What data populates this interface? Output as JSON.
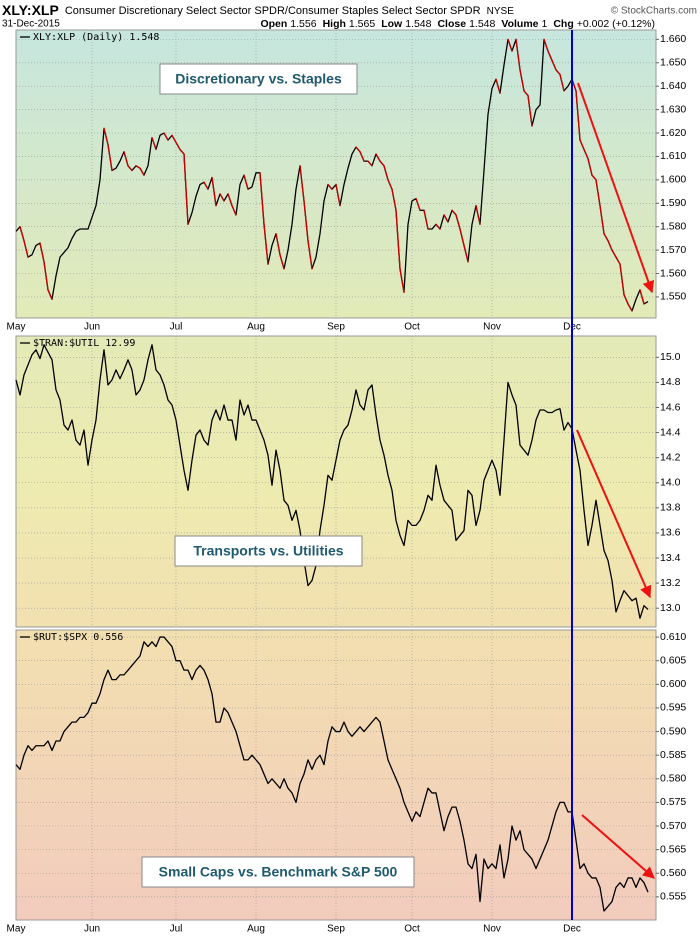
{
  "header": {
    "symbol": "XLY:XLP",
    "description": "Consumer Discretionary Select Sector SPDR/Consumer Staples Select Sector SPDR",
    "exchange": "NYSE",
    "date": "31-Dec-2015",
    "copyright": "© StockCharts.com",
    "stats": [
      {
        "label": "Open",
        "value": "1.556"
      },
      {
        "label": "High",
        "value": "1.565"
      },
      {
        "label": "Low",
        "value": "1.548"
      },
      {
        "label": "Close",
        "value": "1.548"
      },
      {
        "label": "Volume",
        "value": "1"
      },
      {
        "label": "Chg",
        "value": "+0.002 (+0.12%)"
      }
    ]
  },
  "chart_data": [
    {
      "type": "line",
      "annotation": "Discretionary vs. Staples",
      "grid": true,
      "xlim": [
        0,
        160
      ],
      "xticks": [
        {
          "value": 0,
          "label": "May"
        },
        {
          "value": 19,
          "label": "Jun"
        },
        {
          "value": 40,
          "label": "Jul"
        },
        {
          "value": 60,
          "label": "Aug"
        },
        {
          "value": 80,
          "label": "Sep"
        },
        {
          "value": 99,
          "label": "Oct"
        },
        {
          "value": 119,
          "label": "Nov"
        },
        {
          "value": 139,
          "label": "Dec"
        }
      ],
      "vline": {
        "x": 139,
        "color": "#0000cc"
      },
      "ylim": [
        1.541,
        1.664
      ],
      "yticks": [
        {
          "value": 1.55,
          "label": "1.550"
        },
        {
          "value": 1.56,
          "label": "1.560"
        },
        {
          "value": 1.57,
          "label": "1.570"
        },
        {
          "value": 1.58,
          "label": "1.580"
        },
        {
          "value": 1.59,
          "label": "1.590"
        },
        {
          "value": 1.6,
          "label": "1.600"
        },
        {
          "value": 1.61,
          "label": "1.610"
        },
        {
          "value": 1.62,
          "label": "1.620"
        },
        {
          "value": 1.63,
          "label": "1.630"
        },
        {
          "value": 1.64,
          "label": "1.640"
        },
        {
          "value": 1.65,
          "label": "1.650"
        },
        {
          "value": 1.66,
          "label": "1.660"
        }
      ],
      "series": [
        {
          "name": "XLY:XLP (Daily) 1.548",
          "color": "#000000",
          "down_color": "#cc0000",
          "values": [
            1.578,
            1.58,
            1.574,
            1.567,
            1.568,
            1.572,
            1.573,
            1.565,
            1.553,
            1.549,
            1.559,
            1.567,
            1.569,
            1.571,
            1.575,
            1.578,
            1.579,
            1.579,
            1.579,
            1.584,
            1.589,
            1.6,
            1.622,
            1.615,
            1.604,
            1.605,
            1.608,
            1.612,
            1.606,
            1.604,
            1.606,
            1.605,
            1.602,
            1.606,
            1.618,
            1.613,
            1.619,
            1.62,
            1.617,
            1.619,
            1.616,
            1.613,
            1.611,
            1.581,
            1.586,
            1.593,
            1.598,
            1.599,
            1.596,
            1.601,
            1.589,
            1.594,
            1.591,
            1.594,
            1.589,
            1.585,
            1.598,
            1.602,
            1.596,
            1.597,
            1.603,
            1.603,
            1.581,
            1.564,
            1.572,
            1.577,
            1.568,
            1.562,
            1.57,
            1.581,
            1.596,
            1.606,
            1.591,
            1.574,
            1.562,
            1.567,
            1.577,
            1.591,
            1.598,
            1.596,
            1.598,
            1.589,
            1.598,
            1.605,
            1.611,
            1.614,
            1.612,
            1.608,
            1.608,
            1.606,
            1.611,
            1.608,
            1.606,
            1.6,
            1.596,
            1.587,
            1.562,
            1.552,
            1.581,
            1.591,
            1.592,
            1.587,
            1.587,
            1.579,
            1.579,
            1.581,
            1.579,
            1.585,
            1.582,
            1.587,
            1.585,
            1.579,
            1.572,
            1.565,
            1.581,
            1.589,
            1.581,
            1.604,
            1.628,
            1.639,
            1.643,
            1.637,
            1.649,
            1.66,
            1.655,
            1.66,
            1.647,
            1.638,
            1.636,
            1.623,
            1.63,
            1.632,
            1.66,
            1.655,
            1.651,
            1.647,
            1.645,
            1.638,
            1.64,
            1.643,
            1.638,
            1.617,
            1.613,
            1.609,
            1.602,
            1.6,
            1.589,
            1.577,
            1.574,
            1.57,
            1.567,
            1.564,
            1.551,
            1.547,
            1.544,
            1.549,
            1.553,
            1.547,
            1.548
          ]
        }
      ]
    },
    {
      "type": "line",
      "annotation": "Transports vs. Utilities",
      "grid": true,
      "xlim": [
        0,
        160
      ],
      "ylim": [
        12.85,
        15.17
      ],
      "yticks": [
        {
          "value": 13.0,
          "label": "13.0"
        },
        13.2,
        13.4,
        13.6,
        13.8,
        {
          "value": 14.0,
          "label": "14.0"
        },
        14.2,
        14.4,
        14.6,
        14.8,
        {
          "value": 15.0,
          "label": "15.0"
        }
      ],
      "series": [
        {
          "name": "$TRAN:$UTIL 12.99",
          "color": "#000000",
          "values": [
            14.82,
            14.7,
            14.86,
            14.94,
            15.02,
            15.06,
            14.99,
            15.1,
            15.04,
            14.98,
            14.74,
            14.66,
            14.46,
            14.42,
            14.5,
            14.34,
            14.3,
            14.42,
            14.14,
            14.34,
            14.5,
            14.82,
            15.06,
            14.78,
            14.82,
            14.9,
            14.83,
            14.9,
            14.98,
            14.9,
            14.7,
            14.74,
            14.82,
            14.98,
            15.1,
            14.9,
            14.86,
            14.78,
            14.66,
            14.62,
            14.5,
            14.3,
            14.1,
            13.94,
            14.18,
            14.38,
            14.42,
            14.34,
            14.3,
            14.5,
            14.58,
            14.5,
            14.62,
            14.5,
            14.5,
            14.34,
            14.66,
            14.54,
            14.62,
            14.5,
            14.5,
            14.42,
            14.34,
            14.22,
            13.98,
            14.26,
            14.1,
            13.86,
            13.82,
            13.7,
            13.78,
            13.62,
            13.38,
            13.18,
            13.22,
            13.34,
            13.62,
            13.82,
            14.06,
            14.02,
            14.18,
            14.34,
            14.42,
            14.46,
            14.58,
            14.74,
            14.62,
            14.58,
            14.74,
            14.78,
            14.54,
            14.34,
            14.22,
            14.06,
            13.94,
            13.7,
            13.58,
            13.5,
            13.7,
            13.66,
            13.66,
            13.7,
            13.78,
            13.9,
            13.86,
            14.14,
            13.98,
            13.86,
            13.82,
            13.78,
            13.54,
            13.58,
            13.62,
            13.94,
            13.9,
            13.66,
            13.78,
            14.02,
            14.1,
            14.18,
            14.1,
            13.9,
            14.34,
            14.8,
            14.7,
            14.62,
            14.3,
            14.26,
            14.22,
            14.34,
            14.5,
            14.58,
            14.58,
            14.56,
            14.56,
            14.58,
            14.59,
            14.42,
            14.48,
            14.43,
            14.26,
            14.1,
            13.78,
            13.5,
            13.66,
            13.86,
            13.66,
            13.46,
            13.38,
            13.22,
            12.97,
            13.06,
            13.14,
            13.1,
            13.06,
            13.08,
            12.92,
            13.02,
            12.99
          ]
        }
      ]
    },
    {
      "type": "line",
      "annotation": "Small Caps vs. Benchmark S&P 500",
      "grid": true,
      "xlim": [
        0,
        160
      ],
      "xticks": [
        {
          "value": 0,
          "label": "May"
        },
        {
          "value": 19,
          "label": "Jun"
        },
        {
          "value": 40,
          "label": "Jul"
        },
        {
          "value": 60,
          "label": "Aug"
        },
        {
          "value": 80,
          "label": "Sep"
        },
        {
          "value": 99,
          "label": "Oct"
        },
        {
          "value": 119,
          "label": "Nov"
        },
        {
          "value": 139,
          "label": "Dec"
        }
      ],
      "ylim": [
        0.5501,
        0.6115
      ],
      "yticks": [
        0.555,
        {
          "value": 0.56,
          "label": "0.560"
        },
        0.565,
        {
          "value": 0.57,
          "label": "0.570"
        },
        0.575,
        {
          "value": 0.58,
          "label": "0.580"
        },
        0.585,
        {
          "value": 0.59,
          "label": "0.590"
        },
        0.595,
        {
          "value": 0.6,
          "label": "0.600"
        },
        0.605,
        {
          "value": 0.61,
          "label": "0.610"
        }
      ],
      "series": [
        {
          "name": "$RUT:$SPX 0.556",
          "color": "#000000",
          "values": [
            0.583,
            0.582,
            0.585,
            0.587,
            0.586,
            0.587,
            0.587,
            0.587,
            0.588,
            0.586,
            0.588,
            0.588,
            0.59,
            0.591,
            0.592,
            0.592,
            0.593,
            0.593,
            0.594,
            0.596,
            0.596,
            0.598,
            0.601,
            0.603,
            0.601,
            0.601,
            0.602,
            0.602,
            0.603,
            0.604,
            0.605,
            0.606,
            0.609,
            0.608,
            0.609,
            0.608,
            0.61,
            0.61,
            0.609,
            0.608,
            0.605,
            0.605,
            0.603,
            0.603,
            0.601,
            0.603,
            0.604,
            0.603,
            0.601,
            0.598,
            0.592,
            0.592,
            0.595,
            0.594,
            0.592,
            0.59,
            0.587,
            0.584,
            0.584,
            0.585,
            0.584,
            0.583,
            0.581,
            0.579,
            0.58,
            0.579,
            0.578,
            0.58,
            0.578,
            0.577,
            0.575,
            0.579,
            0.581,
            0.584,
            0.582,
            0.584,
            0.585,
            0.583,
            0.588,
            0.591,
            0.59,
            0.59,
            0.592,
            0.59,
            0.589,
            0.59,
            0.591,
            0.59,
            0.591,
            0.592,
            0.593,
            0.592,
            0.588,
            0.584,
            0.582,
            0.58,
            0.578,
            0.575,
            0.573,
            0.571,
            0.573,
            0.572,
            0.575,
            0.578,
            0.577,
            0.577,
            0.573,
            0.569,
            0.572,
            0.574,
            0.574,
            0.571,
            0.567,
            0.562,
            0.561,
            0.564,
            0.554,
            0.563,
            0.561,
            0.562,
            0.561,
            0.566,
            0.559,
            0.563,
            0.57,
            0.567,
            0.569,
            0.565,
            0.564,
            0.563,
            0.561,
            0.563,
            0.565,
            0.567,
            0.57,
            0.573,
            0.575,
            0.575,
            0.573,
            0.573,
            0.567,
            0.561,
            0.562,
            0.56,
            0.559,
            0.559,
            0.557,
            0.552,
            0.553,
            0.554,
            0.557,
            0.558,
            0.557,
            0.559,
            0.559,
            0.557,
            0.559,
            0.558,
            0.556
          ]
        }
      ]
    }
  ]
}
